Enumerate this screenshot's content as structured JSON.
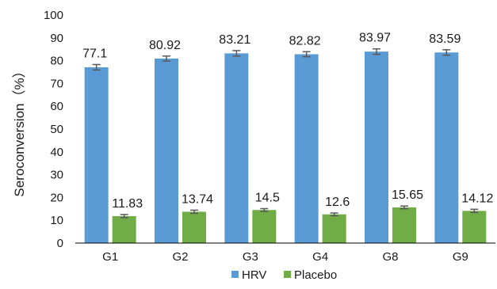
{
  "chart_data": {
    "type": "bar",
    "categories": [
      "G1",
      "G2",
      "G3",
      "G4",
      "G8",
      "G9"
    ],
    "series": [
      {
        "name": "HRV",
        "values": [
          77.1,
          80.92,
          83.21,
          82.82,
          83.97,
          83.59
        ],
        "labels": [
          "77.1",
          "80.92",
          "83.21",
          "82.82",
          "83.97",
          "83.59"
        ],
        "errors": [
          1.2,
          1.1,
          1.2,
          1.1,
          1.2,
          1.2
        ],
        "color": "#5b9bd5"
      },
      {
        "name": "Placebo",
        "values": [
          11.83,
          13.74,
          14.5,
          12.6,
          15.65,
          14.12
        ],
        "labels": [
          "11.83",
          "13.74",
          "14.5",
          "12.6",
          "15.65",
          "14.12"
        ],
        "errors": [
          0.7,
          0.7,
          0.6,
          0.6,
          0.6,
          0.7
        ],
        "color": "#70ad47"
      }
    ],
    "ylabel": "Seroconversion（%）",
    "ylim": [
      0,
      100
    ],
    "yticks": [
      "0",
      "10",
      "20",
      "30",
      "40",
      "50",
      "60",
      "70",
      "80",
      "90",
      "100"
    ],
    "grid": false,
    "legend_position": "bottom",
    "error_bar_color": "#595959",
    "axis_color": "#000000"
  }
}
